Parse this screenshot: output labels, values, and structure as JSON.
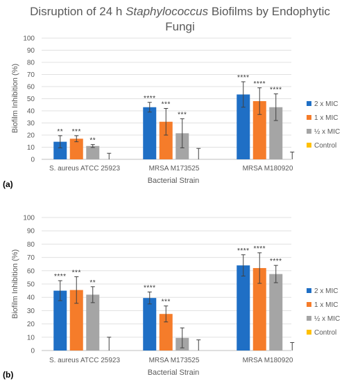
{
  "title": {
    "pre": "Disruption of 24 h ",
    "italic": "Staphylococcus",
    "post": " Biofilms by Endophytic",
    "line2": "Fungi"
  },
  "chart_data": [
    {
      "panel_label": "(a)",
      "type": "bar",
      "categories": [
        "S. aureus ATCC 25923",
        "MRSA M173525",
        "MRSA M180920"
      ],
      "xlabel": "Bacterial Strain",
      "ylabel": "Biofilm Inhibition (%)",
      "ylim": [
        0,
        100
      ],
      "yticks": [
        0,
        10,
        20,
        30,
        40,
        50,
        60,
        70,
        80,
        90,
        100
      ],
      "grid": true,
      "legend_position": "right",
      "series": [
        {
          "name": "2 x MIC",
          "color": "#1f6fc5",
          "values": [
            14.5,
            43,
            53.5
          ],
          "err": [
            5,
            4,
            10.5
          ],
          "sig": [
            "**",
            "****",
            "****"
          ]
        },
        {
          "name": "1 x MIC",
          "color": "#f57c2a",
          "values": [
            17,
            31,
            48
          ],
          "err": [
            2.5,
            11,
            11
          ],
          "sig": [
            "***",
            "***",
            "****"
          ]
        },
        {
          "name": "½ x MIC",
          "color": "#a5a5a5",
          "values": [
            11,
            21.5,
            43
          ],
          "err": [
            1.2,
            12,
            11
          ],
          "sig": [
            "**",
            "***",
            "****"
          ]
        },
        {
          "name": "Control",
          "color": "#ffc000",
          "values": [
            0,
            0,
            0
          ],
          "err": [
            5,
            9,
            6
          ],
          "sig": [
            "",
            "",
            ""
          ]
        }
      ]
    },
    {
      "panel_label": "(b)",
      "type": "bar",
      "categories": [
        "S. aureus ATCC 25923",
        "MRSA M173525",
        "MRSA M180920"
      ],
      "xlabel": "Bacterial Strain",
      "ylabel": "Biofilm Inhibition (%)",
      "ylim": [
        0,
        100
      ],
      "yticks": [
        0,
        10,
        20,
        30,
        40,
        50,
        60,
        70,
        80,
        90,
        100
      ],
      "grid": true,
      "legend_position": "right",
      "series": [
        {
          "name": "2 x MIC",
          "color": "#1f6fc5",
          "values": [
            45,
            39.5,
            64
          ],
          "err": [
            7.5,
            4.5,
            8
          ],
          "sig": [
            "****",
            "****",
            "****"
          ]
        },
        {
          "name": "1 x MIC",
          "color": "#f57c2a",
          "values": [
            45.5,
            27.5,
            62
          ],
          "err": [
            10,
            6,
            11.5
          ],
          "sig": [
            "***",
            "***",
            "****"
          ]
        },
        {
          "name": "½ x MIC",
          "color": "#a5a5a5",
          "values": [
            42,
            9.5,
            57.5
          ],
          "err": [
            6,
            7.5,
            6.5
          ],
          "sig": [
            "**",
            "",
            "****"
          ]
        },
        {
          "name": "Control",
          "color": "#ffc000",
          "values": [
            0,
            0,
            0
          ],
          "err": [
            10,
            8,
            6
          ],
          "sig": [
            "",
            "",
            ""
          ]
        }
      ]
    }
  ]
}
